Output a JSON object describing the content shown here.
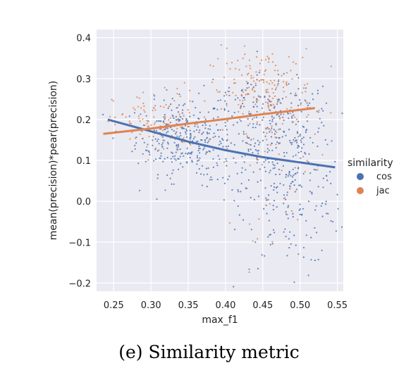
{
  "caption": "(e) Similarity metric",
  "chart_data": {
    "type": "scatter",
    "xlabel": "max_f1",
    "ylabel": "mean(precision)*pear(precision)",
    "xlim": [
      0.227,
      0.558
    ],
    "ylim": [
      -0.22,
      0.42
    ],
    "xticks": [
      "0.25",
      "0.30",
      "0.35",
      "0.40",
      "0.45",
      "0.50",
      "0.55"
    ],
    "yticks": [
      "0.4",
      "0.3",
      "0.2",
      "0.1",
      "0.0",
      "−0.1",
      "−0.2"
    ],
    "grid": true,
    "legend": {
      "title": "similarity",
      "placement": "right"
    },
    "series": [
      {
        "name": "cos",
        "color": "#4C72B0",
        "regression": [
          [
            0.242,
            0.2
          ],
          [
            0.3,
            0.171
          ],
          [
            0.35,
            0.146
          ],
          [
            0.4,
            0.125
          ],
          [
            0.45,
            0.108
          ],
          [
            0.5,
            0.095
          ],
          [
            0.547,
            0.083
          ]
        ],
        "clusters": [
          {
            "x": [
              0.34,
              0.03
            ],
            "y": [
              0.16,
              0.045
            ],
            "n": 260
          },
          {
            "x": [
              0.46,
              0.04
            ],
            "y": [
              0.17,
              0.06
            ],
            "n": 160
          },
          {
            "x": [
              0.49,
              0.035
            ],
            "y": [
              0.02,
              0.09
            ],
            "n": 200
          },
          {
            "x": [
              0.45,
              0.05
            ],
            "y": [
              0.24,
              0.04
            ],
            "n": 90
          },
          {
            "x": [
              0.38,
              0.05
            ],
            "y": [
              0.1,
              0.05
            ],
            "n": 90
          }
        ]
      },
      {
        "name": "jac",
        "color": "#DD8452",
        "regression": [
          [
            0.236,
            0.165
          ],
          [
            0.3,
            0.178
          ],
          [
            0.35,
            0.19
          ],
          [
            0.4,
            0.201
          ],
          [
            0.45,
            0.213
          ],
          [
            0.52,
            0.228
          ]
        ],
        "clusters": [
          {
            "x": [
              0.31,
              0.03
            ],
            "y": [
              0.19,
              0.04
            ],
            "n": 110
          },
          {
            "x": [
              0.45,
              0.035
            ],
            "y": [
              0.27,
              0.05
            ],
            "n": 180
          },
          {
            "x": [
              0.47,
              0.03
            ],
            "y": [
              0.12,
              0.1
            ],
            "n": 60
          }
        ]
      }
    ]
  }
}
